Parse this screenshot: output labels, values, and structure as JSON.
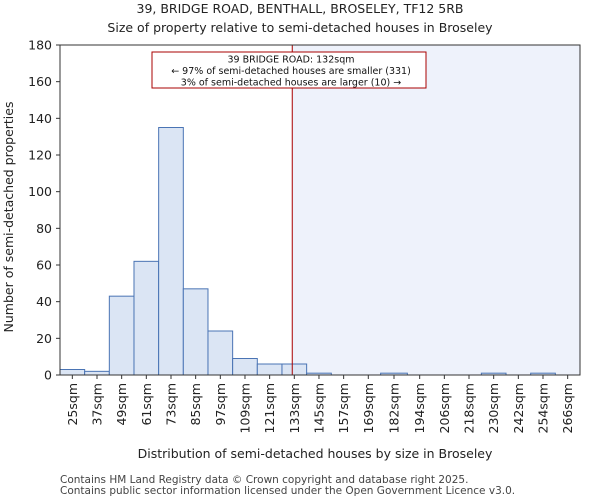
{
  "chart_data": {
    "type": "bar",
    "title": "39, BRIDGE ROAD, BENTHALL, BROSELEY, TF12 5RB",
    "subtitle": "Size of property relative to semi-detached houses in Broseley",
    "xlabel": "Distribution of semi-detached houses by size in Broseley",
    "ylabel": "Number of semi-detached properties",
    "ylim": [
      0,
      180
    ],
    "yticks": [
      0,
      20,
      40,
      60,
      80,
      100,
      120,
      140,
      160,
      180
    ],
    "xlim": [
      19,
      272
    ],
    "bin_edges": [
      19,
      31,
      43,
      55,
      67,
      79,
      91,
      103,
      115,
      127,
      139,
      151,
      163,
      175,
      188,
      200,
      212,
      224,
      236,
      248,
      260,
      272
    ],
    "categories": [
      "25sqm",
      "37sqm",
      "49sqm",
      "61sqm",
      "73sqm",
      "85sqm",
      "97sqm",
      "109sqm",
      "121sqm",
      "133sqm",
      "145sqm",
      "157sqm",
      "169sqm",
      "182sqm",
      "194sqm",
      "206sqm",
      "218sqm",
      "230sqm",
      "242sqm",
      "254sqm",
      "266sqm"
    ],
    "values": [
      3,
      2,
      43,
      62,
      135,
      47,
      24,
      9,
      6,
      6,
      1,
      0,
      0,
      1,
      0,
      0,
      0,
      1,
      0,
      1,
      0
    ],
    "property_marker": {
      "value": 132,
      "lines": [
        "39 BRIDGE ROAD: 132sqm",
        "← 97% of semi-detached houses are smaller (331)",
        "3% of semi-detached houses are larger (10) →"
      ]
    },
    "colors": {
      "bar_fill": "#dbe5f4",
      "bar_stroke": "#4a74b4",
      "marker_line": "#aa0000",
      "highlight_region": "#eef2fb",
      "annotation_border": "#aa0000"
    }
  },
  "footer": {
    "line1": "Contains HM Land Registry data © Crown copyright and database right 2025.",
    "line2": "Contains public sector information licensed under the Open Government Licence v3.0."
  }
}
